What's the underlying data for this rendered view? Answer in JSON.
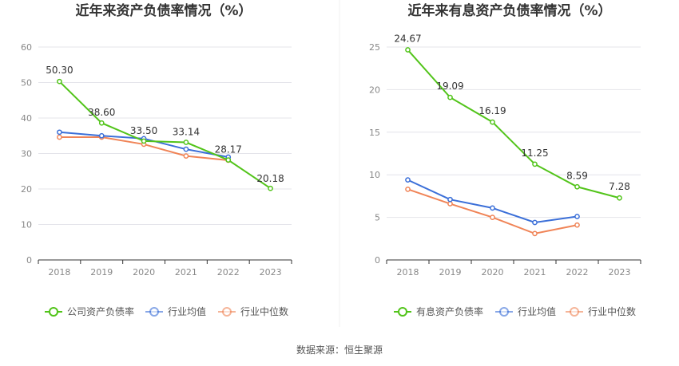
{
  "source_note": "数据来源：恒生聚源",
  "colors": {
    "primary": "#52c41a",
    "avg": "#3b6fd8",
    "median": "#f08457",
    "grid": "#e4e4ea",
    "axis": "#333333"
  },
  "chart_data": [
    {
      "type": "line",
      "title": "近年来资产负债率情况（%）",
      "categories": [
        "2018",
        "2019",
        "2020",
        "2021",
        "2022",
        "2023"
      ],
      "ylim": [
        0,
        60
      ],
      "yticks": [
        0,
        10,
        20,
        30,
        40,
        50,
        60
      ],
      "grid": true,
      "legend_position": "bottom",
      "series": [
        {
          "name": "公司资产负债率",
          "color_key": "primary",
          "values": [
            50.3,
            38.6,
            33.5,
            33.14,
            28.17,
            20.18
          ],
          "labels": [
            "50.30",
            "38.60",
            "33.50",
            "33.14",
            "28.17",
            "20.18"
          ]
        },
        {
          "name": "行业均值",
          "color_key": "avg",
          "values": [
            36.0,
            35.0,
            34.2,
            31.2,
            29.0,
            null
          ]
        },
        {
          "name": "行业中位数",
          "color_key": "median",
          "values": [
            34.6,
            34.6,
            32.6,
            29.3,
            28.1,
            null
          ]
        }
      ]
    },
    {
      "type": "line",
      "title": "近年来有息资产负债率情况（%）",
      "categories": [
        "2018",
        "2019",
        "2020",
        "2021",
        "2022",
        "2023"
      ],
      "ylim": [
        0,
        25
      ],
      "yticks": [
        0,
        5,
        10,
        15,
        20,
        25
      ],
      "grid": true,
      "legend_position": "bottom",
      "series": [
        {
          "name": "有息资产负债率",
          "color_key": "primary",
          "values": [
            24.67,
            19.09,
            16.19,
            11.25,
            8.59,
            7.28
          ],
          "labels": [
            "24.67",
            "19.09",
            "16.19",
            "11.25",
            "8.59",
            "7.28"
          ]
        },
        {
          "name": "行业均值",
          "color_key": "avg",
          "values": [
            9.4,
            7.1,
            6.1,
            4.4,
            5.1,
            null
          ]
        },
        {
          "name": "行业中位数",
          "color_key": "median",
          "values": [
            8.3,
            6.6,
            5.0,
            3.1,
            4.1,
            null
          ]
        }
      ]
    }
  ]
}
